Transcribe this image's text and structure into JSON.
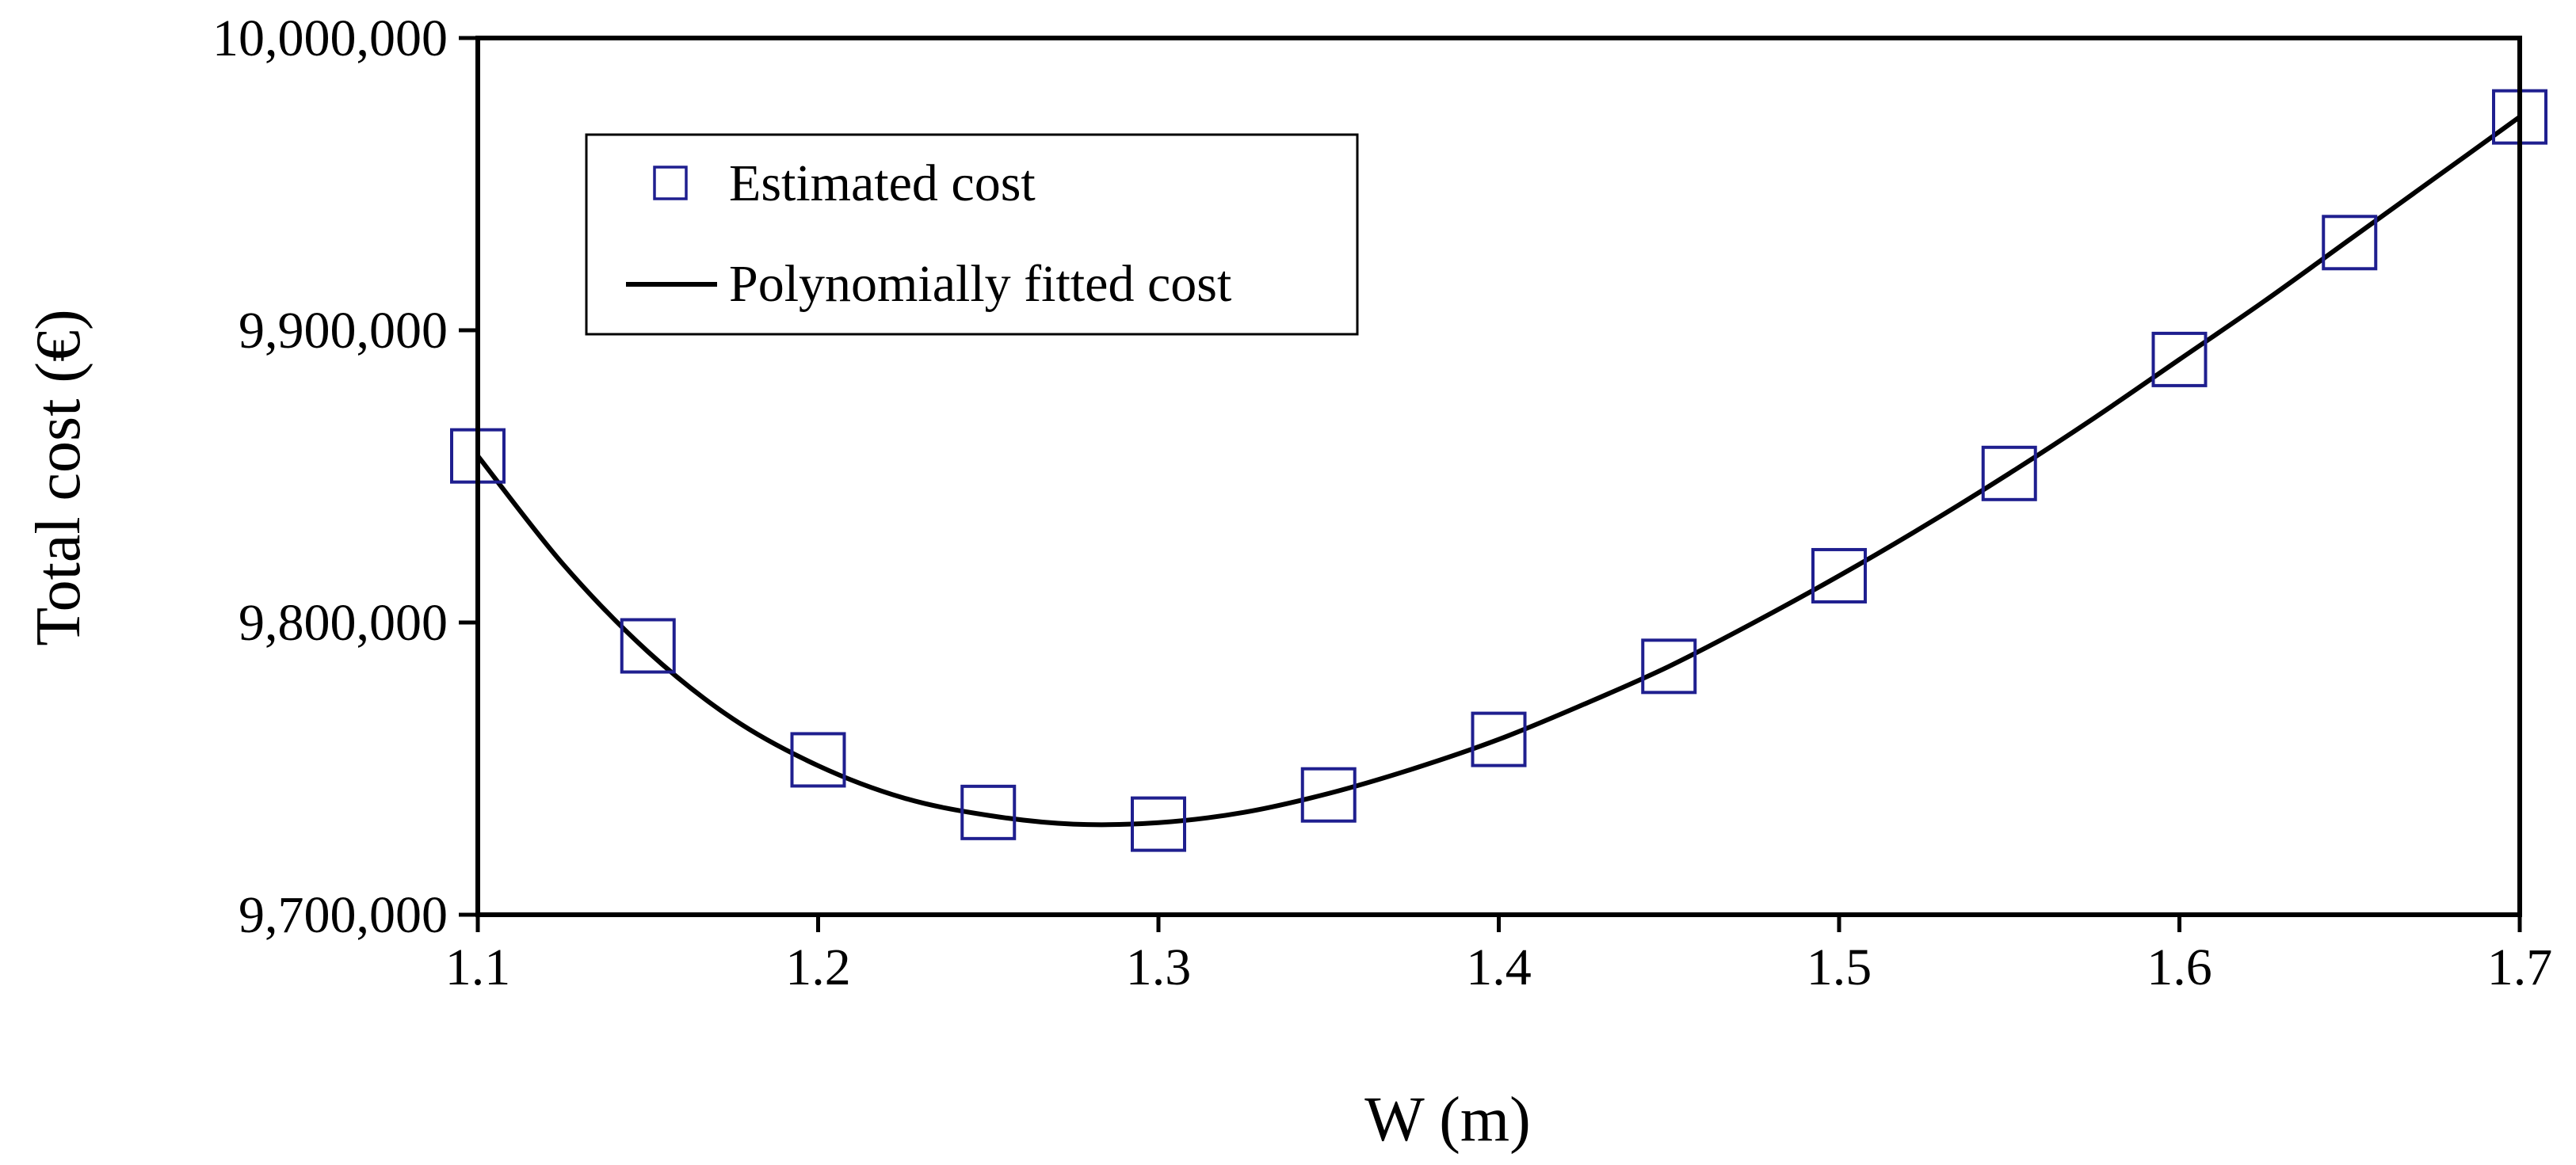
{
  "chart_data": {
    "type": "scatter",
    "title": "",
    "xlabel": "W (m)",
    "ylabel": "Total cost (€)",
    "xlim": [
      1.1,
      1.7
    ],
    "ylim": [
      9700000,
      10000000
    ],
    "x_ticks": [
      1.1,
      1.2,
      1.3,
      1.4,
      1.5,
      1.6,
      1.7
    ],
    "x_tick_labels": [
      "1.1",
      "1.2",
      "1.3",
      "1.4",
      "1.5",
      "1.6",
      "1.7"
    ],
    "y_ticks": [
      9700000,
      9800000,
      9900000,
      10000000
    ],
    "y_tick_labels": [
      "9,700,000",
      "9,800,000",
      "9,900,000",
      "10,000,000"
    ],
    "grid": false,
    "legend_position": "top-left",
    "series": [
      {
        "name": "Estimated cost",
        "kind": "markers",
        "marker": "square",
        "color": "#1f1f8f",
        "x": [
          1.1,
          1.15,
          1.2,
          1.25,
          1.3,
          1.35,
          1.4,
          1.45,
          1.5,
          1.55,
          1.6,
          1.65,
          1.7
        ],
        "y": [
          9857000,
          9792000,
          9753000,
          9735000,
          9731000,
          9741000,
          9760000,
          9785000,
          9816000,
          9851000,
          9890000,
          9930000,
          9973000
        ]
      },
      {
        "name": "Polynomially fitted cost",
        "kind": "line",
        "color": "#000000",
        "x": [
          1.1,
          1.125,
          1.15,
          1.175,
          1.2,
          1.225,
          1.25,
          1.275,
          1.3,
          1.325,
          1.35,
          1.375,
          1.4,
          1.425,
          1.45,
          1.475,
          1.5,
          1.525,
          1.55,
          1.575,
          1.6,
          1.625,
          1.65,
          1.675,
          1.7
        ],
        "y": [
          9857000,
          9820000,
          9790000,
          9767000,
          9751000,
          9740000,
          9734000,
          9731000,
          9731500,
          9735000,
          9741500,
          9750000,
          9760000,
          9772000,
          9785000,
          9800000,
          9816000,
          9833000,
          9851000,
          9870000,
          9890000,
          9910000,
          9931000,
          9952000,
          9973000
        ]
      }
    ]
  }
}
